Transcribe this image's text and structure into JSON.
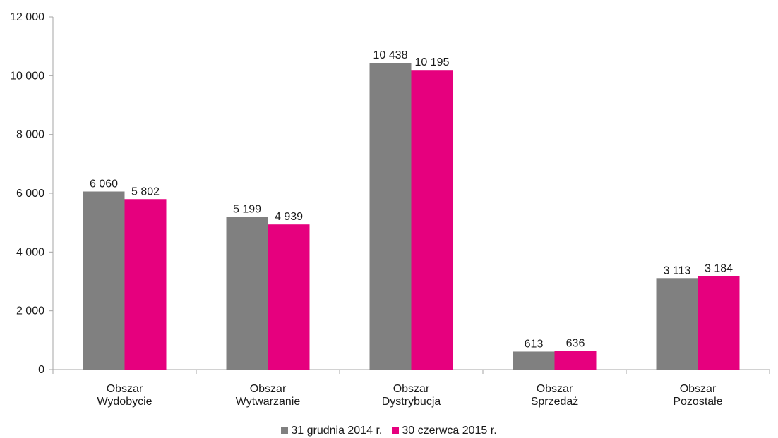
{
  "chart_data": {
    "type": "bar",
    "categories": [
      [
        "Obszar",
        "Wydobycie"
      ],
      [
        "Obszar",
        "Wytwarzanie"
      ],
      [
        "Obszar",
        "Dystrybucja"
      ],
      [
        "Obszar",
        "Sprzedaż"
      ],
      [
        "Obszar",
        "Pozostałe"
      ]
    ],
    "series": [
      {
        "name": "31 grudnia 2014 r.",
        "color": "#808080",
        "values": [
          6060,
          5199,
          10438,
          613,
          3113
        ],
        "labels": [
          "6 060",
          "5 199",
          "10 438",
          "613",
          "3 113"
        ]
      },
      {
        "name": "30 czerwca 2015 r.",
        "color": "#e6007e",
        "values": [
          5802,
          4939,
          10195,
          636,
          3184
        ],
        "labels": [
          "5 802",
          "4 939",
          "10 195",
          "636",
          "3 184"
        ]
      }
    ],
    "yticks": [
      0,
      2000,
      4000,
      6000,
      8000,
      10000,
      12000
    ],
    "ytick_labels": [
      "0",
      "2 000",
      "4 000",
      "6 000",
      "8 000",
      "10 000",
      "12 000"
    ],
    "ylim": [
      0,
      12000
    ],
    "grid": false,
    "legend_position": "bottom"
  }
}
